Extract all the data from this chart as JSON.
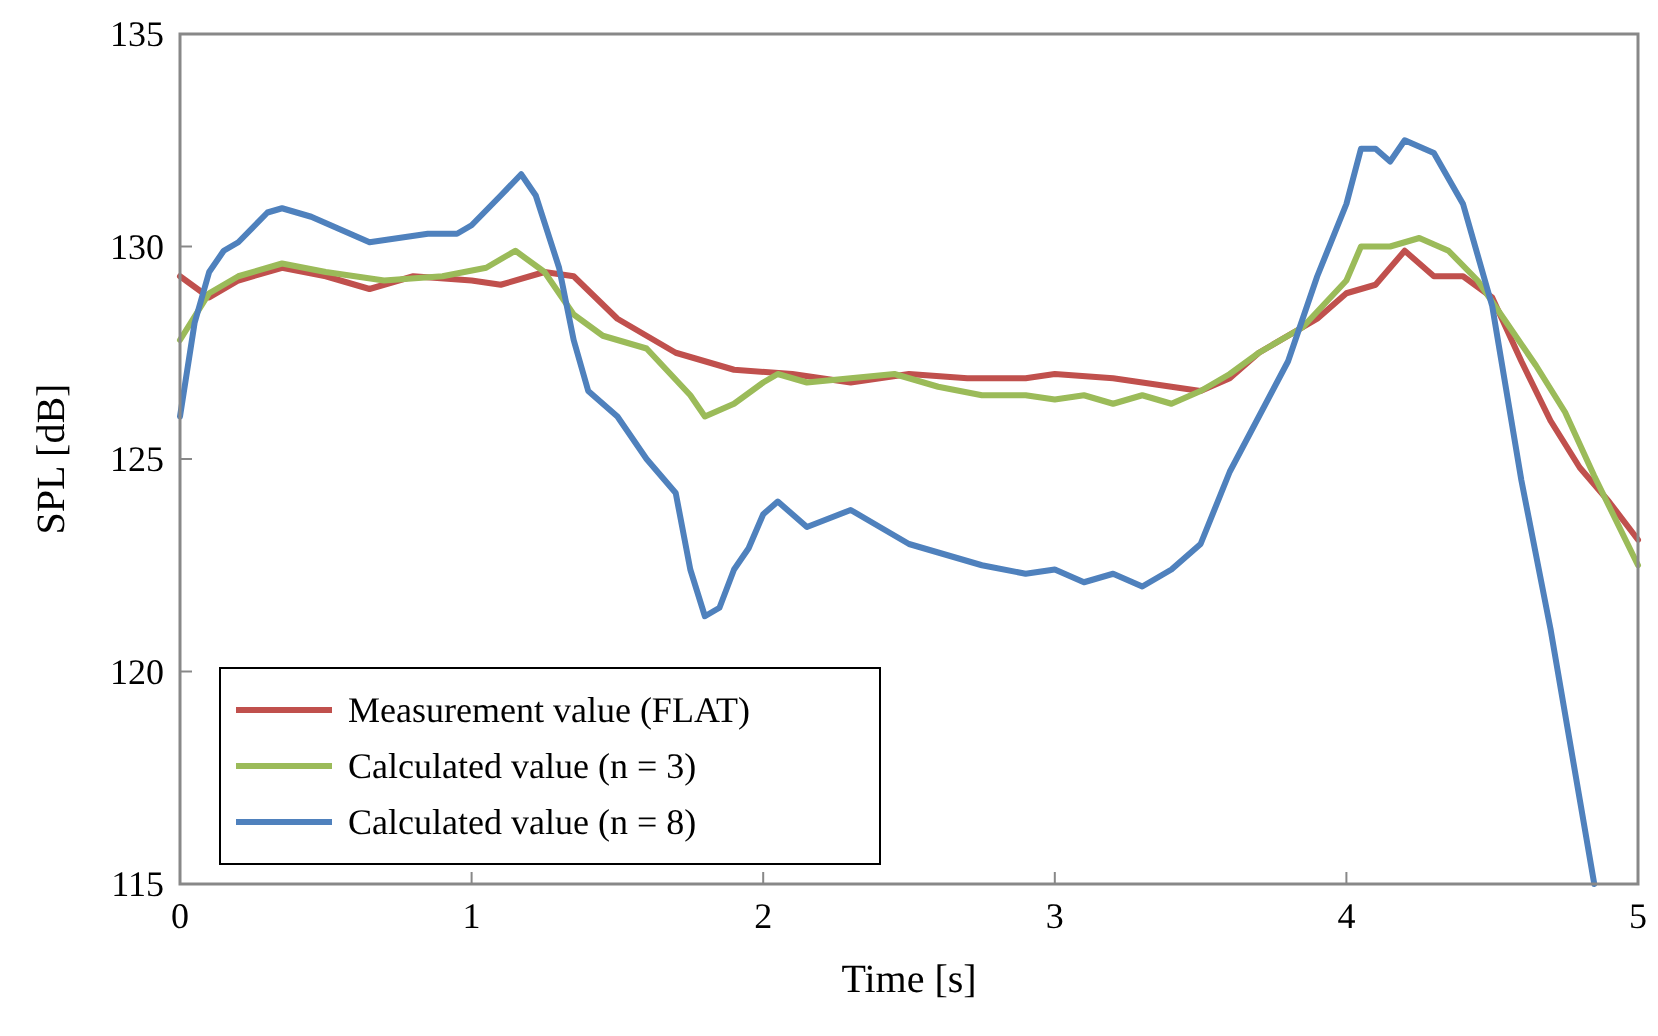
{
  "chart_data": {
    "type": "line",
    "xlabel": "Time  [s]",
    "ylabel": "SPL  [dB]",
    "xlim": [
      0,
      5
    ],
    "ylim": [
      115,
      135
    ],
    "xticks": [
      0,
      1,
      2,
      3,
      4,
      5
    ],
    "yticks": [
      115,
      120,
      125,
      130,
      135
    ],
    "grid": false,
    "legend": "bottom left",
    "marker": "none",
    "line_style": "solid",
    "series": [
      {
        "name": "Measurement value (FLAT)",
        "color": "#c0504d",
        "x": [
          0,
          0.1,
          0.2,
          0.35,
          0.5,
          0.65,
          0.8,
          1.0,
          1.1,
          1.25,
          1.35,
          1.5,
          1.7,
          1.9,
          2.1,
          2.3,
          2.5,
          2.7,
          2.9,
          3.0,
          3.2,
          3.4,
          3.5,
          3.6,
          3.7,
          3.9,
          4.0,
          4.1,
          4.2,
          4.3,
          4.4,
          4.5,
          4.6,
          4.7,
          4.8,
          4.9,
          5.0
        ],
        "values": [
          129.3,
          128.8,
          129.2,
          129.5,
          129.3,
          129.0,
          129.3,
          129.2,
          129.1,
          129.4,
          129.3,
          128.3,
          127.5,
          127.1,
          127.0,
          126.8,
          127.0,
          126.9,
          126.9,
          127.0,
          126.9,
          126.7,
          126.6,
          126.9,
          127.5,
          128.3,
          128.9,
          129.1,
          129.9,
          129.3,
          129.3,
          128.8,
          127.3,
          125.9,
          124.8,
          124.0,
          123.1
        ]
      },
      {
        "name": "Calculated value (n = 3)",
        "color": "#9bbb59",
        "x": [
          0,
          0.1,
          0.2,
          0.35,
          0.5,
          0.7,
          0.9,
          1.05,
          1.15,
          1.25,
          1.35,
          1.45,
          1.6,
          1.75,
          1.8,
          1.9,
          2.0,
          2.05,
          2.15,
          2.3,
          2.45,
          2.6,
          2.75,
          2.9,
          3.0,
          3.1,
          3.2,
          3.3,
          3.4,
          3.5,
          3.6,
          3.7,
          3.85,
          4.0,
          4.05,
          4.15,
          4.25,
          4.35,
          4.45,
          4.55,
          4.65,
          4.75,
          4.85,
          5.0
        ],
        "values": [
          127.8,
          128.9,
          129.3,
          129.6,
          129.4,
          129.2,
          129.3,
          129.5,
          129.9,
          129.4,
          128.4,
          127.9,
          127.6,
          126.5,
          126.0,
          126.3,
          126.8,
          127.0,
          126.8,
          126.9,
          127.0,
          126.7,
          126.5,
          126.5,
          126.4,
          126.5,
          126.3,
          126.5,
          126.3,
          126.6,
          127.0,
          127.5,
          128.1,
          129.2,
          130.0,
          130.0,
          130.2,
          129.9,
          129.2,
          128.2,
          127.2,
          126.1,
          124.6,
          122.5
        ]
      },
      {
        "name": "Calculated value (n = 8)",
        "color": "#4f81bd",
        "x": [
          0,
          0.05,
          0.1,
          0.15,
          0.2,
          0.3,
          0.35,
          0.45,
          0.55,
          0.65,
          0.75,
          0.85,
          0.95,
          1.0,
          1.1,
          1.17,
          1.22,
          1.3,
          1.35,
          1.4,
          1.5,
          1.6,
          1.7,
          1.75,
          1.8,
          1.85,
          1.9,
          1.95,
          2.0,
          2.05,
          2.15,
          2.3,
          2.4,
          2.5,
          2.6,
          2.75,
          2.9,
          3.0,
          3.1,
          3.2,
          3.3,
          3.4,
          3.5,
          3.6,
          3.7,
          3.8,
          3.9,
          4.0,
          4.05,
          4.1,
          4.15,
          4.2,
          4.3,
          4.4,
          4.5,
          4.6,
          4.7,
          4.8,
          4.85
        ],
        "values": [
          126.0,
          128.2,
          129.4,
          129.9,
          130.1,
          130.8,
          130.9,
          130.7,
          130.4,
          130.1,
          130.2,
          130.3,
          130.3,
          130.5,
          131.2,
          131.7,
          131.2,
          129.5,
          127.8,
          126.6,
          126.0,
          125.0,
          124.2,
          122.4,
          121.3,
          121.5,
          122.4,
          122.9,
          123.7,
          124.0,
          123.4,
          123.8,
          123.4,
          123.0,
          122.8,
          122.5,
          122.3,
          122.4,
          122.1,
          122.3,
          122.0,
          122.4,
          123.0,
          124.7,
          126.0,
          127.3,
          129.3,
          131.0,
          132.3,
          132.3,
          132.0,
          132.5,
          132.2,
          131.0,
          128.6,
          124.5,
          121.0,
          117.0,
          115.0
        ]
      }
    ]
  }
}
